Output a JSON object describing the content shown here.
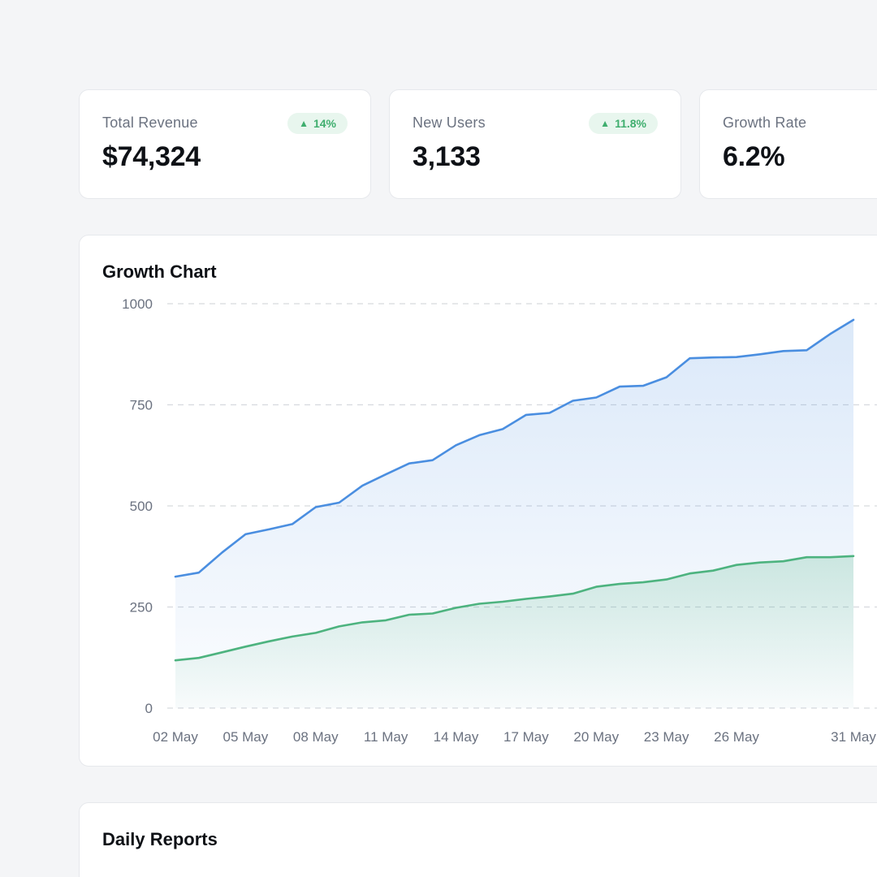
{
  "stats": [
    {
      "label": "Total Revenue",
      "value": "$74,324",
      "change": "14%",
      "trend": "up"
    },
    {
      "label": "New Users",
      "value": "3,133",
      "change": "11.8%",
      "trend": "up"
    },
    {
      "label": "Growth Rate",
      "value": "6.2%"
    }
  ],
  "growth_chart": {
    "title": "Growth Chart"
  },
  "daily_reports": {
    "title": "Daily Reports"
  },
  "colors": {
    "blue_series": "#4a8ee0",
    "green_series": "#4db37f",
    "badge_bg": "#e8f6ee",
    "badge_text": "#3fae6e"
  },
  "chart_data": {
    "type": "area",
    "title": "Growth Chart",
    "xlabel": "",
    "ylabel": "",
    "ylim": [
      0,
      1000
    ],
    "yticks": [
      0,
      250,
      500,
      750,
      1000
    ],
    "xtick_labels": [
      "02 May",
      "05 May",
      "08 May",
      "11 May",
      "14 May",
      "17 May",
      "20 May",
      "23 May",
      "26 May",
      "31 May"
    ],
    "x": [
      "02 May",
      "03 May",
      "04 May",
      "05 May",
      "06 May",
      "07 May",
      "08 May",
      "09 May",
      "10 May",
      "11 May",
      "12 May",
      "13 May",
      "14 May",
      "15 May",
      "16 May",
      "17 May",
      "18 May",
      "19 May",
      "20 May",
      "21 May",
      "22 May",
      "23 May",
      "24 May",
      "25 May",
      "26 May",
      "27 May",
      "28 May",
      "29 May",
      "30 May",
      "31 May"
    ],
    "grid": true,
    "series": [
      {
        "color": "#4a8ee0",
        "values": [
          325,
          335,
          385,
          430,
          442,
          455,
          497,
          508,
          550,
          578,
          605,
          613,
          650,
          675,
          690,
          725,
          730,
          760,
          768,
          795,
          797,
          818,
          865,
          867,
          868,
          875,
          883,
          885,
          925,
          960
        ]
      },
      {
        "color": "#4db37f",
        "values": [
          118,
          124,
          138,
          152,
          165,
          177,
          186,
          202,
          212,
          217,
          231,
          234,
          248,
          258,
          263,
          270,
          276,
          283,
          300,
          307,
          311,
          318,
          333,
          340,
          354,
          360,
          363,
          373,
          373,
          376
        ]
      }
    ]
  }
}
